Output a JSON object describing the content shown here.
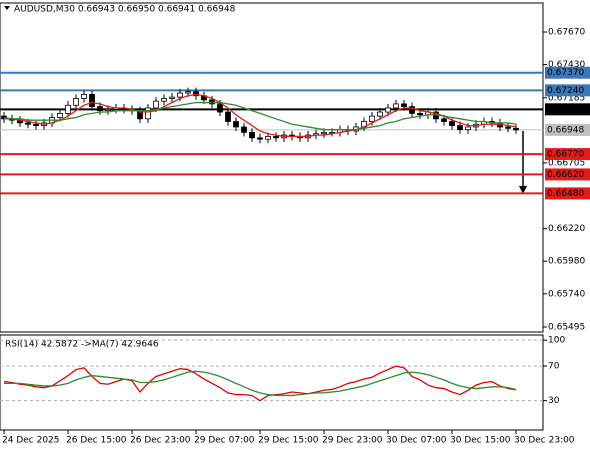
{
  "chart_data": [
    {
      "type": "candlestick",
      "header": "AUDUSD,M30  0.66943 0.66950 0.66941 0.66948",
      "ylim": [
        0.65458,
        0.67884
      ],
      "yticks": [
        {
          "value": 0.6767,
          "label": "0.67670"
        },
        {
          "value": 0.6743,
          "label": "0.67430"
        },
        {
          "value": 0.67185,
          "label": "0.67185"
        },
        {
          "value": 0.66705,
          "label": "0.66705"
        },
        {
          "value": 0.6622,
          "label": "0.66220"
        },
        {
          "value": 0.6598,
          "label": "0.65980"
        },
        {
          "value": 0.6574,
          "label": "0.65740"
        },
        {
          "value": 0.65495,
          "label": "0.65495"
        }
      ],
      "xtick_labels": [
        "24 Dec 2025",
        "26 Dec 15:00",
        "26 Dec 23:00",
        "29 Dec 07:00",
        "29 Dec 15:00",
        "29 Dec 23:00",
        "30 Dec 07:00",
        "30 Dec 15:00",
        "30 Dec 23:00"
      ],
      "levels": [
        {
          "value": 0.6737,
          "label": "0.67370",
          "color": "#3a78b8"
        },
        {
          "value": 0.6724,
          "label": "0.67240",
          "color": "#3a78b8"
        },
        {
          "value": 0.671,
          "label": "0.67100",
          "color": "#000000"
        },
        {
          "value": 0.66948,
          "label": "0.66948",
          "color": "#c0c0c0"
        },
        {
          "value": 0.6677,
          "label": "0.66770",
          "color": "#e41b1b"
        },
        {
          "value": 0.6662,
          "label": "0.66620",
          "color": "#e41b1b"
        },
        {
          "value": 0.6648,
          "label": "0.66480",
          "color": "#e41b1b"
        }
      ],
      "open": [
        0.6705,
        0.6703,
        0.6702,
        0.67,
        0.6699,
        0.6698,
        0.67,
        0.6704,
        0.6707,
        0.6713,
        0.6718,
        0.6721,
        0.6712,
        0.6709,
        0.671,
        0.6711,
        0.671,
        0.6709,
        0.6703,
        0.6711,
        0.6716,
        0.6718,
        0.6719,
        0.6722,
        0.6723,
        0.672,
        0.6717,
        0.6714,
        0.6708,
        0.6701,
        0.6697,
        0.6693,
        0.6689,
        0.6688,
        0.669,
        0.6689,
        0.6691,
        0.669,
        0.6689,
        0.6691,
        0.6692,
        0.6693,
        0.6693,
        0.6695,
        0.6694,
        0.6697,
        0.6701,
        0.6705,
        0.6708,
        0.6711,
        0.6714,
        0.6712,
        0.6707,
        0.6706,
        0.6708,
        0.6703,
        0.6701,
        0.6698,
        0.6695,
        0.6697,
        0.6699,
        0.6701,
        0.67,
        0.6697,
        0.6696
      ],
      "high": [
        0.6708,
        0.6706,
        0.6705,
        0.6703,
        0.6702,
        0.6703,
        0.6707,
        0.671,
        0.6716,
        0.6721,
        0.6724,
        0.6724,
        0.6715,
        0.6713,
        0.6714,
        0.6714,
        0.6713,
        0.6712,
        0.6714,
        0.6719,
        0.6721,
        0.6722,
        0.6725,
        0.6726,
        0.6726,
        0.6723,
        0.672,
        0.6717,
        0.6711,
        0.6704,
        0.67,
        0.6696,
        0.6692,
        0.6693,
        0.6693,
        0.6694,
        0.6694,
        0.6693,
        0.6694,
        0.6695,
        0.6696,
        0.6696,
        0.6698,
        0.6698,
        0.67,
        0.6704,
        0.6708,
        0.6711,
        0.6714,
        0.6717,
        0.6717,
        0.6715,
        0.671,
        0.6711,
        0.6711,
        0.6706,
        0.6704,
        0.6701,
        0.67,
        0.6702,
        0.6704,
        0.6704,
        0.6703,
        0.67,
        0.6699
      ],
      "low": [
        0.67,
        0.6699,
        0.6697,
        0.6696,
        0.6695,
        0.6695,
        0.6697,
        0.6701,
        0.6704,
        0.671,
        0.6715,
        0.6709,
        0.6706,
        0.6706,
        0.6707,
        0.6707,
        0.6706,
        0.67,
        0.67,
        0.6708,
        0.6713,
        0.6715,
        0.6716,
        0.6719,
        0.6717,
        0.6714,
        0.6711,
        0.6705,
        0.6698,
        0.6694,
        0.669,
        0.6686,
        0.6685,
        0.6685,
        0.6686,
        0.6686,
        0.6687,
        0.6686,
        0.6686,
        0.6688,
        0.6689,
        0.669,
        0.669,
        0.6691,
        0.6691,
        0.6694,
        0.6698,
        0.6702,
        0.6705,
        0.6708,
        0.6709,
        0.6704,
        0.6703,
        0.6703,
        0.67,
        0.6698,
        0.6695,
        0.6692,
        0.6692,
        0.6694,
        0.6696,
        0.6697,
        0.6694,
        0.6693,
        0.6692
      ],
      "close": [
        0.6703,
        0.6702,
        0.67,
        0.6699,
        0.6698,
        0.67,
        0.6704,
        0.6707,
        0.6713,
        0.6718,
        0.6721,
        0.6712,
        0.6709,
        0.671,
        0.6711,
        0.671,
        0.6709,
        0.6703,
        0.6711,
        0.6716,
        0.6718,
        0.6719,
        0.6722,
        0.6723,
        0.672,
        0.6717,
        0.6714,
        0.6708,
        0.6701,
        0.6697,
        0.6693,
        0.6689,
        0.6688,
        0.669,
        0.6689,
        0.6691,
        0.669,
        0.6689,
        0.6691,
        0.6692,
        0.6693,
        0.6693,
        0.6695,
        0.6694,
        0.6697,
        0.6701,
        0.6705,
        0.6708,
        0.6711,
        0.6714,
        0.6712,
        0.6707,
        0.6706,
        0.6708,
        0.6703,
        0.6701,
        0.6698,
        0.6695,
        0.6697,
        0.6699,
        0.6701,
        0.67,
        0.6697,
        0.6696,
        0.66948
      ],
      "series": [
        {
          "color": "#e02020",
          "values": [
            0.6704,
            0.6703,
            0.6702,
            0.6701,
            0.67,
            0.6699,
            0.67,
            0.6702,
            0.6705,
            0.6709,
            0.6713,
            0.6715,
            0.6714,
            0.6712,
            0.6711,
            0.6711,
            0.671,
            0.6708,
            0.6708,
            0.6709,
            0.6712,
            0.6715,
            0.6718,
            0.672,
            0.6721,
            0.672,
            0.6718,
            0.6715,
            0.6711,
            0.6706,
            0.6702,
            0.6698,
            0.6694,
            0.6692,
            0.6691,
            0.669,
            0.669,
            0.669,
            0.669,
            0.6691,
            0.6691,
            0.6692,
            0.6693,
            0.6694,
            0.6695,
            0.6697,
            0.67,
            0.6703,
            0.6706,
            0.6709,
            0.6711,
            0.6711,
            0.6709,
            0.6708,
            0.6707,
            0.6705,
            0.6702,
            0.67,
            0.6698,
            0.6698,
            0.6699,
            0.6699,
            0.6699,
            0.6698,
            0.6697
          ]
        },
        {
          "color": "#2e8b2e",
          "values": [
            0.6703,
            0.6703,
            0.6703,
            0.6702,
            0.6702,
            0.6702,
            0.6702,
            0.6702,
            0.6703,
            0.6704,
            0.6706,
            0.6707,
            0.6708,
            0.6708,
            0.6709,
            0.6709,
            0.6709,
            0.6709,
            0.6709,
            0.671,
            0.6711,
            0.6712,
            0.6713,
            0.6714,
            0.6715,
            0.6715,
            0.6715,
            0.6715,
            0.6714,
            0.6713,
            0.6711,
            0.6709,
            0.6707,
            0.6705,
            0.6703,
            0.6701,
            0.6699,
            0.6698,
            0.6697,
            0.6696,
            0.6695,
            0.6695,
            0.6695,
            0.6695,
            0.6695,
            0.6696,
            0.6697,
            0.6698,
            0.67,
            0.6701,
            0.6703,
            0.6704,
            0.6705,
            0.6706,
            0.6706,
            0.6705,
            0.6704,
            0.6703,
            0.6702,
            0.6701,
            0.6701,
            0.67,
            0.67,
            0.67,
            0.6699
          ]
        }
      ]
    },
    {
      "type": "line",
      "header": "RSI(14) 42.5872  ->MA(7) 42.9646",
      "ylim": [
        -4,
        106
      ],
      "yticks": [
        100,
        70,
        30
      ],
      "series": [
        {
          "color": "#e00000",
          "values": [
            52,
            51,
            49,
            48,
            46,
            45,
            47,
            53,
            59,
            66,
            68,
            58,
            50,
            49,
            52,
            55,
            53,
            40,
            50,
            58,
            61,
            64,
            67,
            66,
            61,
            55,
            50,
            45,
            39,
            37,
            37,
            36,
            30,
            36,
            37,
            38,
            40,
            39,
            38,
            40,
            42,
            43,
            46,
            50,
            52,
            55,
            57,
            62,
            66,
            70,
            68,
            58,
            54,
            48,
            45,
            44,
            40,
            37,
            42,
            48,
            51,
            52,
            47,
            44,
            42.5872
          ]
        },
        {
          "color": "#2e8b2e",
          "values": [
            50,
            50,
            50,
            49,
            48,
            47,
            47,
            48,
            50,
            54,
            57,
            59,
            58,
            57,
            56,
            55,
            54,
            51,
            51,
            52,
            54,
            57,
            60,
            63,
            64,
            63,
            61,
            58,
            54,
            50,
            46,
            42,
            39,
            37,
            36,
            36,
            36,
            37,
            38,
            39,
            39,
            40,
            41,
            43,
            45,
            47,
            50,
            53,
            56,
            59,
            62,
            63,
            62,
            60,
            57,
            54,
            50,
            47,
            45,
            44,
            45,
            46,
            46,
            45,
            42.9646
          ]
        }
      ]
    }
  ]
}
